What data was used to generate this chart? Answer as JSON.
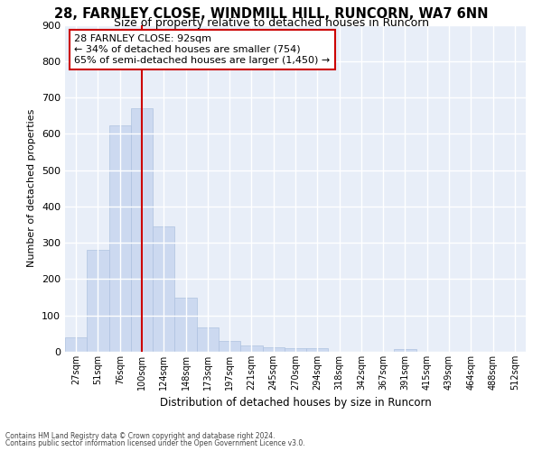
{
  "title_line1": "28, FARNLEY CLOSE, WINDMILL HILL, RUNCORN, WA7 6NN",
  "title_line2": "Size of property relative to detached houses in Runcorn",
  "xlabel": "Distribution of detached houses by size in Runcorn",
  "ylabel": "Number of detached properties",
  "bar_color": "#ccd9f0",
  "bar_edge_color": "#aec2e0",
  "background_color": "#e8eef8",
  "grid_color": "#ffffff",
  "categories": [
    "27sqm",
    "51sqm",
    "76sqm",
    "100sqm",
    "124sqm",
    "148sqm",
    "173sqm",
    "197sqm",
    "221sqm",
    "245sqm",
    "270sqm",
    "294sqm",
    "318sqm",
    "342sqm",
    "367sqm",
    "391sqm",
    "415sqm",
    "439sqm",
    "464sqm",
    "488sqm",
    "512sqm"
  ],
  "values": [
    40,
    280,
    622,
    670,
    345,
    148,
    67,
    30,
    18,
    12,
    10,
    9,
    0,
    0,
    0,
    8,
    0,
    0,
    0,
    0,
    0
  ],
  "ylim": [
    0,
    900
  ],
  "yticks": [
    0,
    100,
    200,
    300,
    400,
    500,
    600,
    700,
    800,
    900
  ],
  "annotation_text": "28 FARNLEY CLOSE: 92sqm\n← 34% of detached houses are smaller (754)\n65% of semi-detached houses are larger (1,450) →",
  "annotation_box_color": "#ffffff",
  "annotation_box_edge": "#cc0000",
  "vline_color": "#cc0000",
  "vline_x_index": 3.0,
  "footnote1": "Contains HM Land Registry data © Crown copyright and database right 2024.",
  "footnote2": "Contains public sector information licensed under the Open Government Licence v3.0."
}
